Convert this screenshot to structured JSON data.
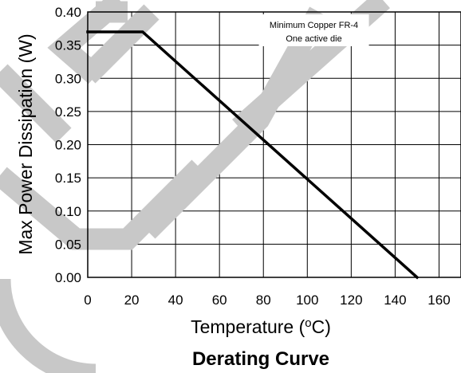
{
  "chart_data": {
    "type": "line",
    "title": "Derating Curve",
    "xlabel": "Temperature (°C)",
    "xlabel_parts": {
      "before": "Temperature (",
      "superscript": "o",
      "after": "C)"
    },
    "ylabel": "Max Power Dissipation (W)",
    "xlim": [
      0,
      170
    ],
    "ylim": [
      0,
      0.4
    ],
    "x_ticks": [
      0,
      20,
      40,
      60,
      80,
      100,
      120,
      140,
      160
    ],
    "y_ticks": [
      0.0,
      0.05,
      0.1,
      0.15,
      0.2,
      0.25,
      0.3,
      0.35,
      0.4
    ],
    "x_tick_labels": [
      "0",
      "20",
      "40",
      "60",
      "80",
      "100",
      "120",
      "140",
      "160"
    ],
    "y_tick_labels": [
      "0.00",
      "0.05",
      "0.10",
      "0.15",
      "0.20",
      "0.25",
      "0.30",
      "0.35",
      "0.40"
    ],
    "grid": true,
    "series": [
      {
        "x": [
          0,
          25,
          150
        ],
        "y": [
          0.37,
          0.37,
          0.0
        ]
      }
    ],
    "annotations": [
      {
        "lines": [
          "Minimum Copper FR-4",
          "One active die"
        ],
        "x": 103,
        "y": 0.382
      }
    ],
    "watermark": {
      "color": "#c8c8c8"
    },
    "colors": {
      "line": "#000000",
      "grid": "#000000",
      "watermark": "#c8c8c8"
    }
  }
}
